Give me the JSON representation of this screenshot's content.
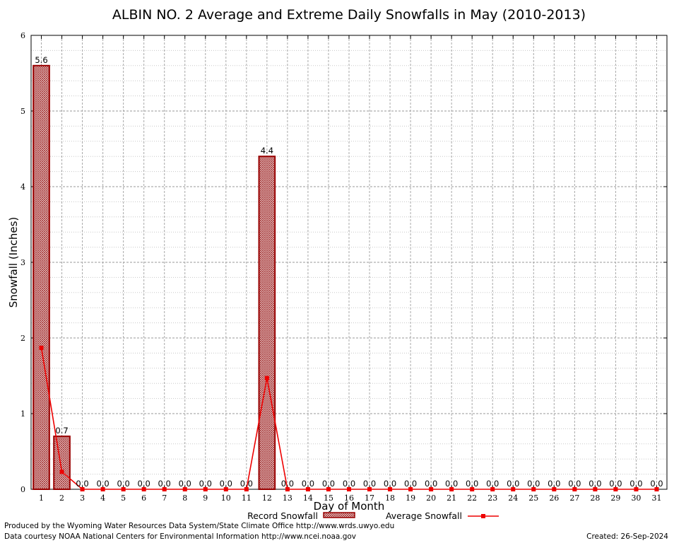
{
  "chart_data": {
    "type": "bar",
    "title": "ALBIN NO. 2 Average and Extreme Daily Snowfalls in May (2010-2013)",
    "xlabel": "Day of Month",
    "ylabel": "Snowfall (Inches)",
    "ylim": [
      0,
      6
    ],
    "yticks": [
      "0",
      "1",
      "2",
      "3",
      "4",
      "5",
      "6"
    ],
    "categories": [
      "1",
      "2",
      "3",
      "4",
      "5",
      "6",
      "7",
      "8",
      "9",
      "10",
      "11",
      "12",
      "13",
      "14",
      "15",
      "16",
      "17",
      "18",
      "19",
      "20",
      "21",
      "22",
      "23",
      "24",
      "25",
      "26",
      "27",
      "28",
      "29",
      "30",
      "31"
    ],
    "series": [
      {
        "name": "Record Snowfall",
        "kind": "bar",
        "color": "#990000",
        "values": [
          5.6,
          0.7,
          0.0,
          0.0,
          0.0,
          0.0,
          0.0,
          0.0,
          0.0,
          0.0,
          0.0,
          4.4,
          0.0,
          0.0,
          0.0,
          0.0,
          0.0,
          0.0,
          0.0,
          0.0,
          0.0,
          0.0,
          0.0,
          0.0,
          0.0,
          0.0,
          0.0,
          0.0,
          0.0,
          0.0,
          0.0
        ],
        "labels": [
          "5.6",
          "0.7",
          "0.0",
          "0.0",
          "0.0",
          "0.0",
          "0.0",
          "0.0",
          "0.0",
          "0.0",
          "0.0",
          "4.4",
          "0.0",
          "0.0",
          "0.0",
          "0.0",
          "0.0",
          "0.0",
          "0.0",
          "0.0",
          "0.0",
          "0.0",
          "0.0",
          "0.0",
          "0.0",
          "0.0",
          "0.0",
          "0.0",
          "0.0",
          "0.0",
          "0.0"
        ]
      },
      {
        "name": "Average Snowfall",
        "kind": "line",
        "color": "#ee0000",
        "values": [
          1.87,
          0.23,
          0,
          0,
          0,
          0,
          0,
          0,
          0,
          0,
          0,
          1.47,
          0,
          0,
          0,
          0,
          0,
          0,
          0,
          0,
          0,
          0,
          0,
          0,
          0,
          0,
          0,
          0,
          0,
          0,
          0
        ]
      }
    ],
    "grid": true,
    "legend_placement": "bottom-center"
  },
  "footer": {
    "line1": "Produced by the Wyoming Water Resources Data System/State Climate Office http://www.wrds.uwyo.edu",
    "line2": "Data courtesy NOAA National Centers for Environmental Information http://www.ncei.noaa.gov",
    "created": "Created:  26-Sep-2024"
  }
}
